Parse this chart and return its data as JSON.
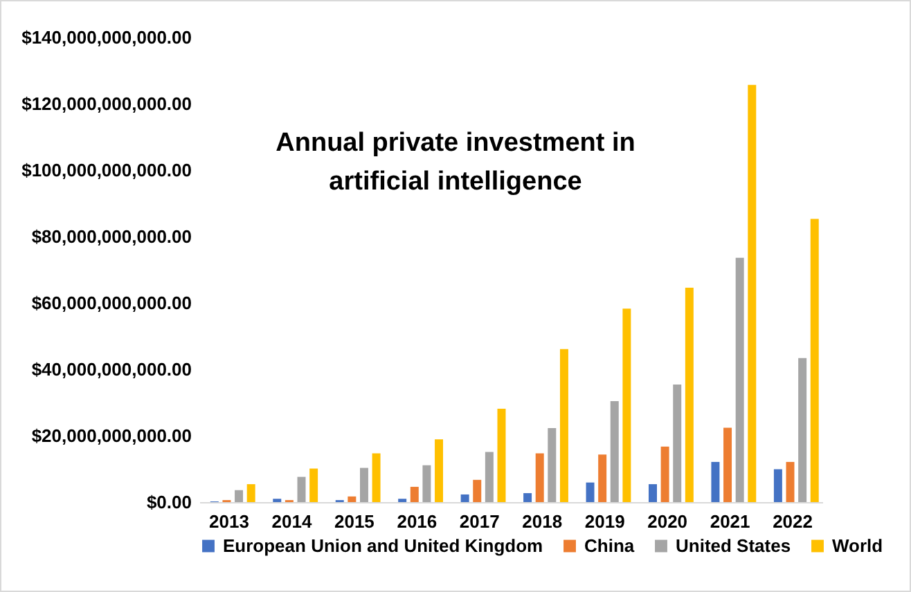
{
  "chart_data": {
    "type": "bar",
    "title": [
      "Annual private investment in",
      "artificial intelligence"
    ],
    "categories": [
      "2013",
      "2014",
      "2015",
      "2016",
      "2017",
      "2018",
      "2019",
      "2020",
      "2021",
      "2022"
    ],
    "series": [
      {
        "name": "European Union and United Kingdom",
        "color": "#4472c4",
        "values": [
          200000000,
          1000000000,
          600000000,
          1000000000,
          2300000000,
          2700000000,
          5900000000,
          5400000000,
          12100000000,
          9900000000
        ]
      },
      {
        "name": "China",
        "color": "#ed7d31",
        "values": [
          600000000,
          600000000,
          1700000000,
          4600000000,
          6700000000,
          14700000000,
          14300000000,
          16700000000,
          22400000000,
          12100000000
        ]
      },
      {
        "name": "United States",
        "color": "#a5a5a5",
        "values": [
          3600000000,
          7600000000,
          10300000000,
          11100000000,
          15100000000,
          22300000000,
          30400000000,
          35400000000,
          73600000000,
          43400000000
        ]
      },
      {
        "name": "World",
        "color": "#ffc000",
        "values": [
          5400000000,
          10100000000,
          14700000000,
          18900000000,
          28100000000,
          46100000000,
          58300000000,
          64600000000,
          125700000000,
          85300000000
        ]
      }
    ],
    "ylim": [
      0,
      140000000000
    ],
    "yticks": [
      {
        "value": 0,
        "label": "$0.00"
      },
      {
        "value": 20000000000,
        "label": "$20,000,000,000.00"
      },
      {
        "value": 40000000000,
        "label": "$40,000,000,000.00"
      },
      {
        "value": 60000000000,
        "label": "$60,000,000,000.00"
      },
      {
        "value": 80000000000,
        "label": "$80,000,000,000.00"
      },
      {
        "value": 100000000000,
        "label": "$100,000,000,000.00"
      },
      {
        "value": 120000000000,
        "label": "$120,000,000,000.00"
      },
      {
        "value": 140000000000,
        "label": "$140,000,000,000.00"
      }
    ],
    "grid": false,
    "legend": "bottom"
  }
}
